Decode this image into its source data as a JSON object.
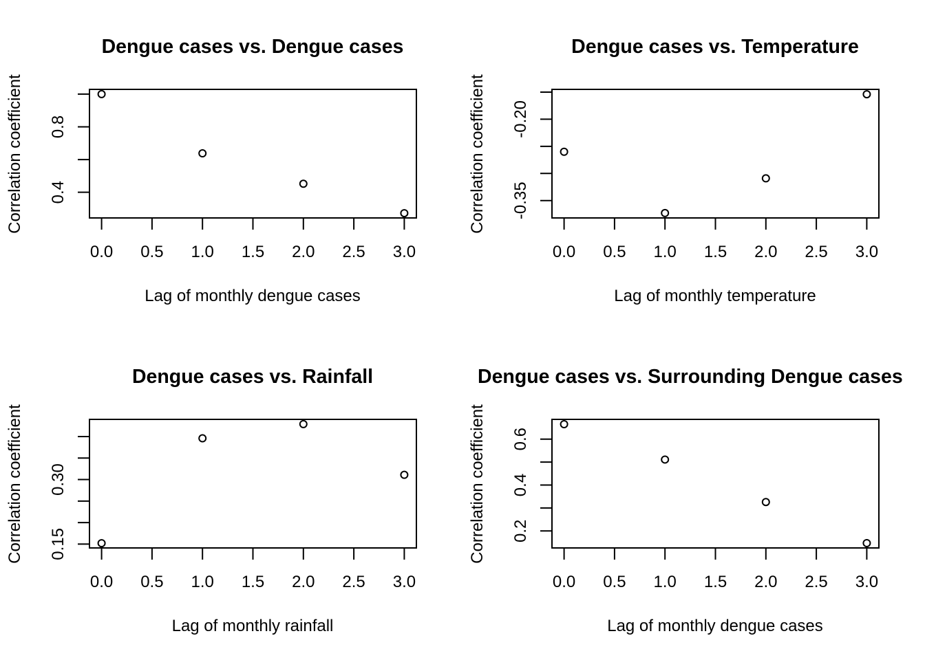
{
  "chart_data": [
    {
      "type": "scatter",
      "title": "Dengue cases vs. Dengue cases",
      "xlabel": "Lag of monthly dengue cases",
      "ylabel": "Correlation coefficient",
      "x": [
        0,
        1,
        2,
        3
      ],
      "y": [
        1.0,
        0.638,
        0.452,
        0.272
      ],
      "xticks": [
        0,
        0.5,
        1,
        1.5,
        2,
        2.5,
        3
      ],
      "xtick_labels": [
        "0.0",
        "0.5",
        "1.0",
        "1.5",
        "2.0",
        "2.5",
        "3.0"
      ],
      "yticks": [
        0.4,
        0.6,
        0.8,
        1.0
      ],
      "ytick_labels": [
        "0.4",
        "",
        "0.8",
        ""
      ],
      "xlim": [
        -0.12,
        3.12
      ],
      "ylim": [
        0.243,
        1.029
      ],
      "grid": false,
      "marker": "open-circle"
    },
    {
      "type": "scatter",
      "title": "Dengue cases vs. Temperature",
      "xlabel": "Lag of monthly temperature",
      "ylabel": "Correlation coefficient",
      "x": [
        0,
        1,
        2,
        3
      ],
      "y": [
        -0.26,
        -0.373,
        -0.309,
        -0.154
      ],
      "xticks": [
        0,
        0.5,
        1,
        1.5,
        2,
        2.5,
        3
      ],
      "xtick_labels": [
        "0.0",
        "0.5",
        "1.0",
        "1.5",
        "2.0",
        "2.5",
        "3.0"
      ],
      "yticks": [
        -0.35,
        -0.3,
        -0.25,
        -0.2,
        -0.15
      ],
      "ytick_labels": [
        "-0.35",
        "",
        "",
        "-0.20",
        ""
      ],
      "xlim": [
        -0.12,
        3.12
      ],
      "ylim": [
        -0.382,
        -0.145
      ],
      "grid": false,
      "marker": "open-circle"
    },
    {
      "type": "scatter",
      "title": "Dengue cases vs. Rainfall",
      "xlabel": "Lag of monthly rainfall",
      "ylabel": "Correlation coefficient",
      "x": [
        0,
        1,
        2,
        3
      ],
      "y": [
        0.152,
        0.396,
        0.429,
        0.311
      ],
      "xticks": [
        0,
        0.5,
        1,
        1.5,
        2,
        2.5,
        3
      ],
      "xtick_labels": [
        "0.0",
        "0.5",
        "1.0",
        "1.5",
        "2.0",
        "2.5",
        "3.0"
      ],
      "yticks": [
        0.15,
        0.2,
        0.25,
        0.3,
        0.35,
        0.4
      ],
      "ytick_labels": [
        "0.15",
        "",
        "",
        "0.30",
        "",
        ""
      ],
      "xlim": [
        -0.12,
        3.12
      ],
      "ylim": [
        0.141,
        0.44
      ],
      "grid": false,
      "marker": "open-circle"
    },
    {
      "type": "scatter",
      "title": "Dengue cases vs. Surrounding Dengue cases",
      "xlabel": "Lag of monthly dengue cases",
      "ylabel": "Correlation coefficient",
      "x": [
        0,
        1,
        2,
        3
      ],
      "y": [
        0.665,
        0.511,
        0.326,
        0.147
      ],
      "xticks": [
        0,
        0.5,
        1,
        1.5,
        2,
        2.5,
        3
      ],
      "xtick_labels": [
        "0.0",
        "0.5",
        "1.0",
        "1.5",
        "2.0",
        "2.5",
        "3.0"
      ],
      "yticks": [
        0.2,
        0.3,
        0.4,
        0.5,
        0.6
      ],
      "ytick_labels": [
        "0.2",
        "",
        "0.4",
        "",
        "0.6"
      ],
      "xlim": [
        -0.12,
        3.12
      ],
      "ylim": [
        0.126,
        0.686
      ],
      "grid": false,
      "marker": "open-circle"
    }
  ]
}
